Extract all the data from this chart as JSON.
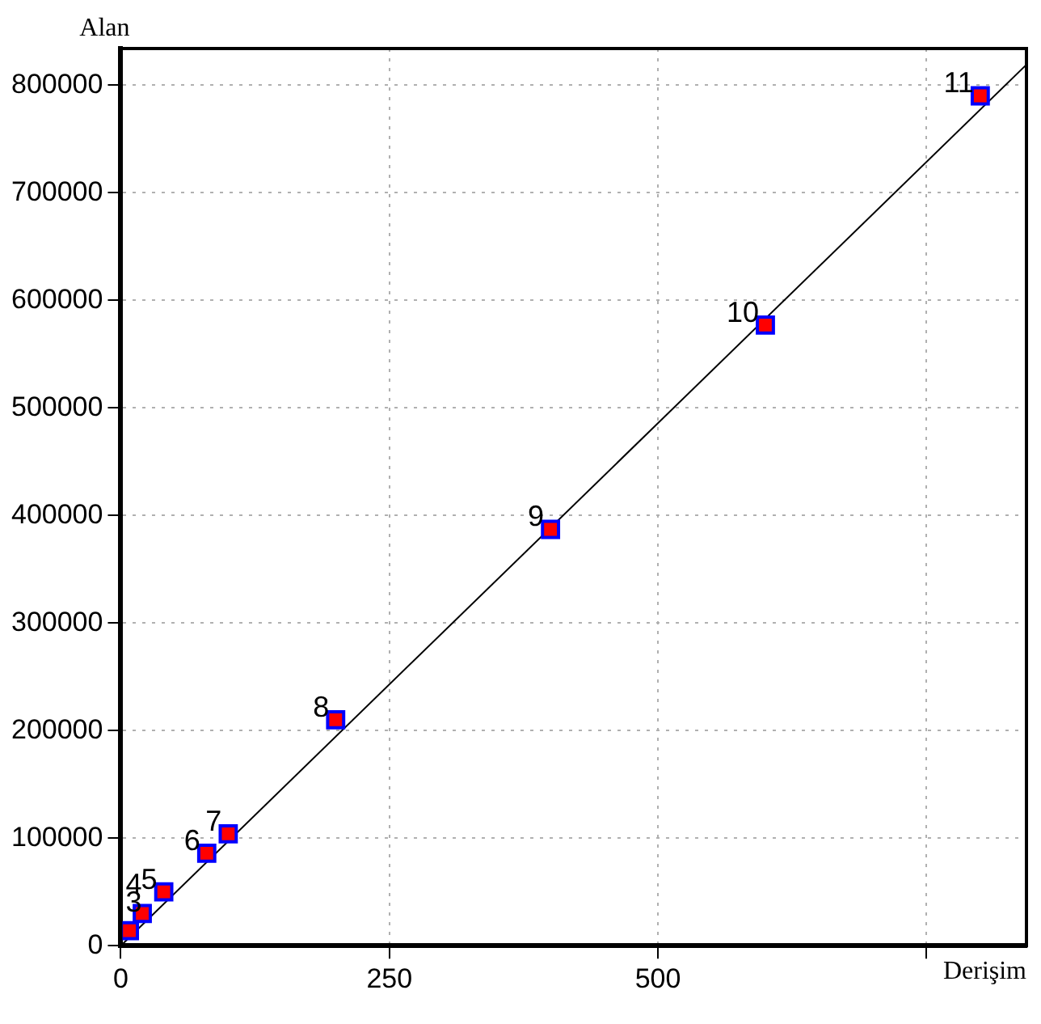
{
  "chart_data": {
    "type": "scatter",
    "xlabel": "Derişim",
    "ylabel": "Alan",
    "xlim": [
      0,
      843
    ],
    "ylim": [
      0,
      834000
    ],
    "xticks": [
      0,
      250,
      500,
      {
        "value": 750,
        "label": null
      }
    ],
    "yticks": [
      0,
      100000,
      200000,
      300000,
      400000,
      500000,
      600000,
      700000,
      800000
    ],
    "grid": true,
    "legend": false,
    "series": [
      {
        "color": "#ff0000",
        "marker": "square",
        "x": [
          8,
          20,
          40,
          80,
          100,
          200,
          400,
          600,
          800
        ],
        "values": [
          14000,
          30000,
          50000,
          86000,
          104000,
          210000,
          387000,
          577000,
          790000
        ]
      },
      {
        "type": "line",
        "color": "#000000",
        "marker": "none",
        "x": [
          0,
          843
        ],
        "values": [
          0,
          819000
        ]
      }
    ],
    "annotations": [
      {
        "text": "3",
        "x": 8,
        "y": 14000
      },
      {
        "text": "4",
        "x": 20,
        "y": 30000
      },
      {
        "text": "5",
        "x": 40,
        "y": 50000
      },
      {
        "text": "6",
        "x": 80,
        "y": 86000
      },
      {
        "text": "7",
        "x": 100,
        "y": 104000
      },
      {
        "text": "8",
        "x": 200,
        "y": 210000
      },
      {
        "text": "9",
        "x": 400,
        "y": 387000
      },
      {
        "text": "10",
        "x": 600,
        "y": 577000
      },
      {
        "text": "11",
        "x": 800,
        "y": 790000
      }
    ]
  }
}
